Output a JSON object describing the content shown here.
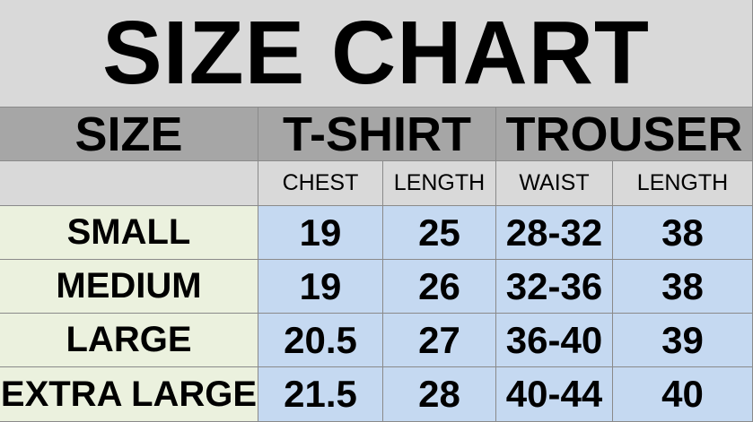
{
  "title": "SIZE CHART",
  "table": {
    "header": [
      "SIZE",
      "T-SHIRT",
      "TROUSER"
    ],
    "subheader": [
      "CHEST",
      "LENGTH",
      "WAIST",
      "LENGTH"
    ],
    "rows": [
      [
        "SMALL",
        "19",
        "25",
        "28-32",
        "38"
      ],
      [
        "MEDIUM",
        "19",
        "26",
        "32-36",
        "38"
      ],
      [
        "LARGE",
        "20.5",
        "27",
        "36-40",
        "39"
      ],
      [
        "EXTRA LARGE",
        "21.5",
        "28",
        "40-44",
        "40"
      ]
    ]
  }
}
